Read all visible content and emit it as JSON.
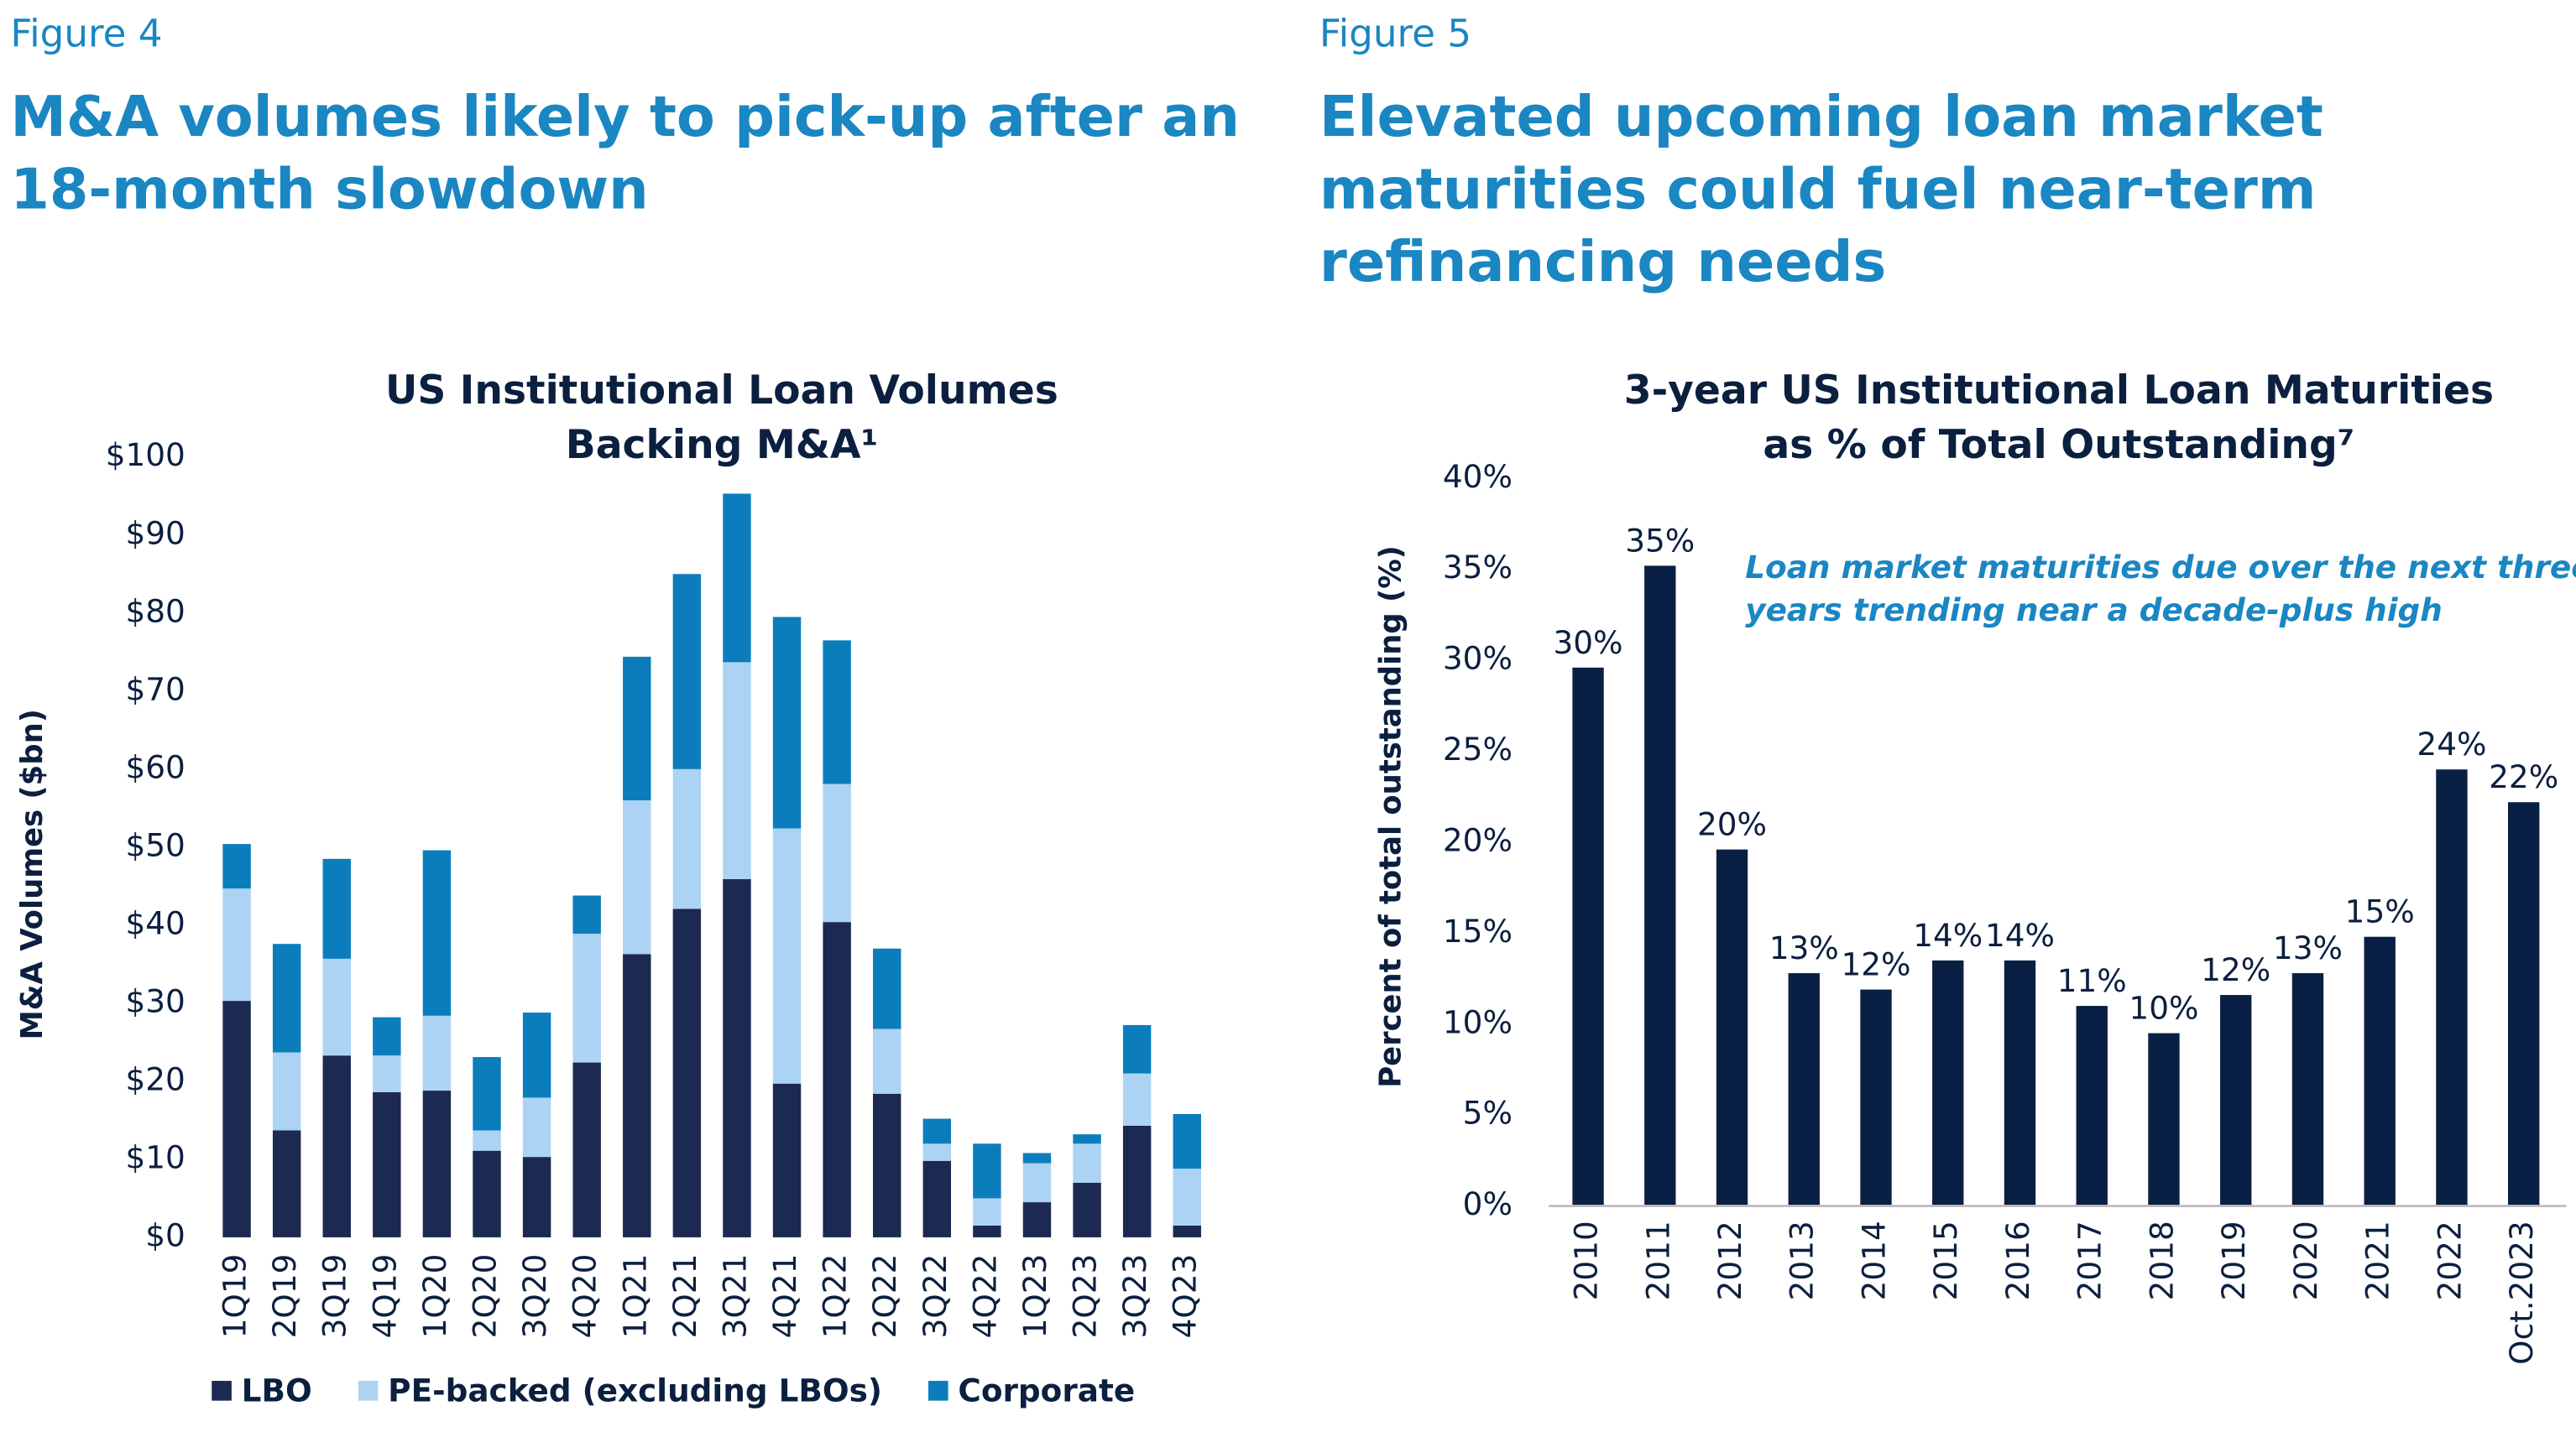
{
  "chart_data": [
    {
      "type": "bar",
      "stacked": true,
      "figure": "Figure 4",
      "heading": [
        "M&A volumes likely to pick-up after an",
        "18-month slowdown"
      ],
      "title": [
        "US Institutional Loan Volumes",
        "Backing M&A¹"
      ],
      "y_label": "M&A Volumes ($bn)",
      "categories": [
        "1Q19",
        "2Q19",
        "3Q19",
        "4Q19",
        "1Q20",
        "2Q20",
        "3Q20",
        "4Q20",
        "1Q21",
        "2Q21",
        "3Q21",
        "4Q21",
        "1Q22",
        "2Q22",
        "3Q22",
        "4Q22",
        "1Q23",
        "2Q23",
        "3Q23",
        "4Q23"
      ],
      "series": [
        {
          "name": "LBO",
          "color": "#1c2951",
          "values": [
            30.3,
            13.7,
            23.3,
            18.6,
            18.8,
            11.1,
            10.3,
            22.4,
            36.3,
            42.1,
            45.9,
            19.7,
            40.4,
            18.4,
            9.8,
            1.5,
            4.5,
            7,
            14.3,
            1.5
          ]
        },
        {
          "name": "PE-backed (excluding LBOs)",
          "color": "#acd3f3",
          "values": [
            14.4,
            10,
            12.4,
            4.7,
            9.6,
            2.6,
            7.6,
            16.5,
            19.7,
            17.9,
            27.8,
            32.7,
            17.7,
            8.3,
            2.2,
            3.5,
            5,
            5,
            6.7,
            7.3
          ]
        },
        {
          "name": "Corporate",
          "color": "#0b7dbd",
          "values": [
            5.7,
            13.9,
            12.8,
            4.9,
            21.2,
            9.4,
            10.9,
            4.9,
            18.4,
            25,
            21.6,
            27.1,
            18.4,
            10.3,
            3.2,
            7,
            1.3,
            1.2,
            6.2,
            7
          ]
        }
      ],
      "ylim": [
        0,
        100
      ],
      "yticks": [
        {
          "value": 0,
          "label": "$0"
        },
        {
          "value": 10,
          "label": "$10"
        },
        {
          "value": 20,
          "label": "$20"
        },
        {
          "value": 30,
          "label": "$30"
        },
        {
          "value": 40,
          "label": "$40"
        },
        {
          "value": 50,
          "label": "$50"
        },
        {
          "value": 60,
          "label": "$60"
        },
        {
          "value": 70,
          "label": "$70"
        },
        {
          "value": 80,
          "label": "$80"
        },
        {
          "value": 90,
          "label": "$90"
        },
        {
          "value": 100,
          "label": "$100"
        }
      ],
      "grid": false,
      "legend": "bottom"
    },
    {
      "type": "bar",
      "figure": "Figure 5",
      "heading": [
        "Elevated upcoming loan market",
        "maturities could fuel near-term",
        "refinancing needs"
      ],
      "title": [
        "3-year US Institutional Loan Maturities",
        "as % of Total Outstanding⁷"
      ],
      "y_label": "Percent of total outstanding (%)",
      "annotation": [
        "Loan market maturities due over the next three",
        "years trending near a decade-plus high"
      ],
      "categories": [
        "2010",
        "2011",
        "2012",
        "2013",
        "2014",
        "2015",
        "2016",
        "2017",
        "2018",
        "2019",
        "2020",
        "2021",
        "2022",
        "Oct.2023"
      ],
      "values": [
        29.6,
        35.2,
        19.6,
        12.8,
        11.9,
        13.5,
        13.5,
        11,
        9.5,
        11.6,
        12.8,
        14.8,
        24,
        22.2
      ],
      "value_labels": [
        "30%",
        "35%",
        "20%",
        "13%",
        "12%",
        "14%",
        "14%",
        "11%",
        "10%",
        "12%",
        "13%",
        "15%",
        "24%",
        "22%"
      ],
      "color": "#0a1f44",
      "ylim": [
        0,
        40
      ],
      "yticks": [
        {
          "value": 0,
          "label": "0%"
        },
        {
          "value": 5,
          "label": "5%"
        },
        {
          "value": 10,
          "label": "10%"
        },
        {
          "value": 15,
          "label": "15%"
        },
        {
          "value": 20,
          "label": "20%"
        },
        {
          "value": 25,
          "label": "25%"
        },
        {
          "value": 30,
          "label": "30%"
        },
        {
          "value": 35,
          "label": "35%"
        },
        {
          "value": 40,
          "label": "40%"
        }
      ],
      "grid": false
    }
  ]
}
